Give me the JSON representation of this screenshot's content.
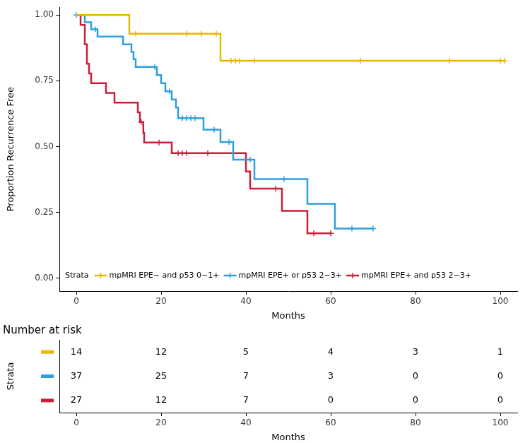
{
  "chart_data": {
    "type": "kaplan_meier",
    "x_label": "Months",
    "y_label": "Proportion Recurrence Free",
    "xlim": [
      -4,
      104
    ],
    "xticks": [
      0,
      20,
      40,
      60,
      80,
      100
    ],
    "ylim": [
      -0.05,
      1.03
    ],
    "yticks": [
      {
        "value": 0,
        "label": "0.00"
      },
      {
        "value": 0.25,
        "label": "0.25"
      },
      {
        "value": 0.5,
        "label": "0.50"
      },
      {
        "value": 0.75,
        "label": "0.75"
      },
      {
        "value": 1,
        "label": "1.00"
      }
    ],
    "grid": false,
    "legend": "bottom",
    "legend_title": "Strata",
    "series": [
      {
        "name": "mpMRI EPE− and p53 0−1+",
        "color": "#E7B800",
        "line_style": "step",
        "marker": "plus",
        "x": [
          0,
          12.5,
          34,
          101
        ],
        "values": [
          1,
          0.929,
          0.826,
          0.826
        ],
        "censored_x": [
          14,
          26,
          29.5,
          33,
          36.5,
          37.5,
          38.5,
          42,
          67,
          88,
          100,
          101
        ],
        "censored_values": [
          0.929,
          0.929,
          0.929,
          0.929,
          0.826,
          0.826,
          0.826,
          0.826,
          0.826,
          0.826,
          0.826,
          0.826
        ],
        "at_risk": [
          14,
          12,
          5,
          4,
          3,
          1
        ]
      },
      {
        "name": "mpMRI EPE+ or p53 2−3+",
        "color": "#2E9FDF",
        "line_style": "step",
        "marker": "plus",
        "x": [
          0,
          2,
          3.5,
          5,
          11,
          13,
          13.5,
          14,
          19,
          20,
          21,
          22.5,
          23.5,
          24,
          30,
          34,
          37,
          42,
          54.5,
          61,
          70
        ],
        "values": [
          1,
          0.973,
          0.946,
          0.918,
          0.889,
          0.86,
          0.832,
          0.803,
          0.772,
          0.741,
          0.71,
          0.679,
          0.648,
          0.608,
          0.564,
          0.517,
          0.45,
          0.376,
          0.282,
          0.188,
          0.188
        ],
        "censored_x": [
          0,
          4.5,
          18.5,
          22,
          25,
          26,
          27,
          28,
          32.5,
          36,
          41,
          49,
          65,
          70
        ],
        "censored_values": [
          1,
          0.946,
          0.803,
          0.71,
          0.608,
          0.608,
          0.608,
          0.608,
          0.564,
          0.517,
          0.45,
          0.376,
          0.188,
          0.188
        ],
        "at_risk": [
          37,
          25,
          7,
          3,
          0,
          0
        ]
      },
      {
        "name": "mpMRI EPE+ and p53 2−3+",
        "color": "#C8203A",
        "line_style": "step",
        "marker": "plus",
        "x": [
          0,
          1,
          2,
          2.5,
          3,
          3.5,
          7,
          9,
          14.5,
          15,
          15.8,
          16,
          22.5,
          40,
          41,
          48.5,
          54.5,
          60
        ],
        "values": [
          1,
          0.963,
          0.889,
          0.815,
          0.778,
          0.741,
          0.704,
          0.667,
          0.63,
          0.593,
          0.552,
          0.515,
          0.475,
          0.405,
          0.34,
          0.255,
          0.17,
          0.17
        ],
        "censored_x": [
          15.3,
          19.5,
          24,
          25,
          26,
          31,
          47,
          56,
          60
        ],
        "censored_values": [
          0.593,
          0.515,
          0.475,
          0.475,
          0.475,
          0.475,
          0.34,
          0.17,
          0.17
        ],
        "at_risk": [
          27,
          12,
          7,
          0,
          0,
          0
        ]
      }
    ],
    "risk_table": {
      "title": "Number at risk",
      "y_label": "Strata",
      "x_label": "Months",
      "x": [
        0,
        20,
        40,
        60,
        80,
        100
      ]
    }
  }
}
